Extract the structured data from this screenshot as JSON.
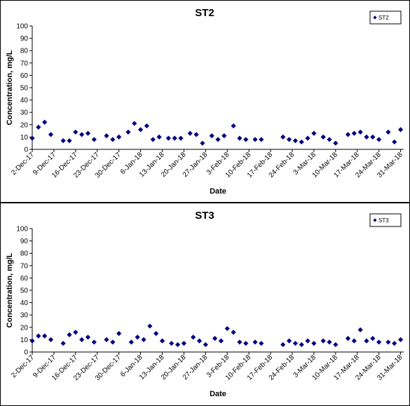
{
  "chart_data": [
    {
      "type": "scatter",
      "title": "ST2",
      "xlabel": "Date",
      "ylabel": "Concentration, mg/L",
      "ylim": [
        0,
        100
      ],
      "yticks": [
        "0",
        "10",
        "20",
        "30",
        "40",
        "50",
        "60",
        "70",
        "80",
        "90",
        "100"
      ],
      "xlim": [
        "2017-12-02",
        "2018-04-01"
      ],
      "xticks": [
        "2-Dec-17",
        "9-Dec-17",
        "16-Dec-17",
        "23-Dec-17",
        "30-Dec-17",
        "6-Jan-18",
        "13-Jan-18",
        "20-Jan-18",
        "27-Jan-18",
        "3-Feb-18",
        "10-Feb-18",
        "17-Feb-18",
        "24-Feb-18",
        "3-Mar-18",
        "10-Mar-18",
        "17-Mar-18",
        "24-Mar-18",
        "31-Mar-18"
      ],
      "grid": false,
      "legend": "top-right",
      "series": [
        {
          "name": "ST2",
          "color": "#000080",
          "x": [
            "2017-12-02",
            "2017-12-04",
            "2017-12-06",
            "2017-12-08",
            "2017-12-12",
            "2017-12-14",
            "2017-12-16",
            "2017-12-18",
            "2017-12-20",
            "2017-12-22",
            "2017-12-26",
            "2017-12-28",
            "2017-12-30",
            "2018-01-02",
            "2018-01-04",
            "2018-01-06",
            "2018-01-08",
            "2018-01-10",
            "2018-01-12",
            "2018-01-15",
            "2018-01-17",
            "2018-01-19",
            "2018-01-22",
            "2018-01-24",
            "2018-01-26",
            "2018-01-29",
            "2018-01-31",
            "2018-02-02",
            "2018-02-05",
            "2018-02-07",
            "2018-02-09",
            "2018-02-12",
            "2018-02-14",
            "2018-02-21",
            "2018-02-23",
            "2018-02-25",
            "2018-02-27",
            "2018-03-01",
            "2018-03-03",
            "2018-03-06",
            "2018-03-08",
            "2018-03-10",
            "2018-03-14",
            "2018-03-16",
            "2018-03-18",
            "2018-03-20",
            "2018-03-22",
            "2018-03-24",
            "2018-03-27",
            "2018-03-29",
            "2018-03-31"
          ],
          "y": [
            9,
            18,
            22,
            12,
            7,
            7,
            14,
            12,
            13,
            8,
            11,
            8,
            10,
            14,
            21,
            16,
            19,
            8,
            10,
            9,
            9,
            9,
            13,
            12,
            5,
            11,
            8,
            11,
            19,
            9,
            8,
            8,
            8,
            10,
            8,
            7,
            6,
            9,
            13,
            10,
            8,
            5,
            12,
            13,
            14,
            10,
            10,
            8,
            14,
            6,
            16
          ]
        }
      ]
    },
    {
      "type": "scatter",
      "title": "ST3",
      "xlabel": "Date",
      "ylabel": "Concentration, mg/L",
      "ylim": [
        0,
        100
      ],
      "yticks": [
        "0",
        "10",
        "20",
        "30",
        "40",
        "50",
        "60",
        "70",
        "80",
        "90",
        "100"
      ],
      "xlim": [
        "2017-12-02",
        "2018-04-01"
      ],
      "xticks": [
        "2-Dec-17",
        "9-Dec-17",
        "16-Dec-17",
        "23-Dec-17",
        "30-Dec-17",
        "6-Jan-18",
        "13-Jan-18",
        "20-Jan-18",
        "27-Jan-18",
        "3-Feb-18",
        "10-Feb-18",
        "17-Feb-18",
        "24-Feb-18",
        "3-Mar-18",
        "10-Mar-18",
        "17-Mar-18",
        "24-Mar-18",
        "31-Mar-18"
      ],
      "grid": false,
      "legend": "top-right",
      "series": [
        {
          "name": "ST3",
          "color": "#000080",
          "x": [
            "2017-12-02",
            "2017-12-04",
            "2017-12-06",
            "2017-12-08",
            "2017-12-12",
            "2017-12-14",
            "2017-12-16",
            "2017-12-18",
            "2017-12-20",
            "2017-12-22",
            "2017-12-26",
            "2017-12-28",
            "2017-12-30",
            "2018-01-03",
            "2018-01-05",
            "2018-01-07",
            "2018-01-09",
            "2018-01-11",
            "2018-01-13",
            "2018-01-16",
            "2018-01-18",
            "2018-01-20",
            "2018-01-23",
            "2018-01-25",
            "2018-01-27",
            "2018-01-30",
            "2018-02-01",
            "2018-02-03",
            "2018-02-05",
            "2018-02-07",
            "2018-02-09",
            "2018-02-12",
            "2018-02-14",
            "2018-02-21",
            "2018-02-23",
            "2018-02-25",
            "2018-02-27",
            "2018-03-01",
            "2018-03-03",
            "2018-03-06",
            "2018-03-08",
            "2018-03-10",
            "2018-03-14",
            "2018-03-16",
            "2018-03-18",
            "2018-03-20",
            "2018-03-22",
            "2018-03-24",
            "2018-03-27",
            "2018-03-29",
            "2018-03-31"
          ],
          "y": [
            9,
            13,
            13,
            10,
            7,
            14,
            16,
            10,
            12,
            8,
            10,
            8,
            15,
            8,
            12,
            10,
            21,
            15,
            9,
            7,
            6,
            7,
            12,
            9,
            6,
            11,
            9,
            19,
            16,
            8,
            7,
            8,
            7,
            6,
            9,
            7,
            6,
            9,
            7,
            9,
            8,
            6,
            11,
            9,
            18,
            9,
            11,
            8,
            8,
            7,
            10
          ]
        }
      ]
    }
  ]
}
